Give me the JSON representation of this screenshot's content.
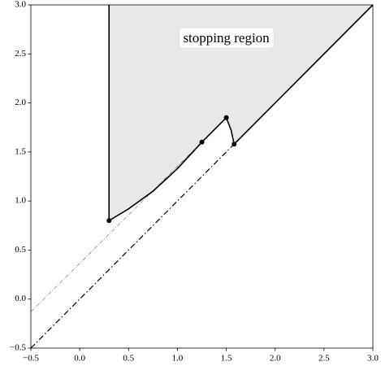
{
  "chart_data": {
    "type": "line",
    "xlim": [
      -0.5,
      3.0
    ],
    "ylim": [
      -0.5,
      3.0
    ],
    "xticks": [
      {
        "value": -0.5,
        "label": "−0.5"
      },
      {
        "value": 0,
        "label": "0.0"
      },
      0.5,
      {
        "value": 1,
        "label": "1.0"
      },
      1.5,
      {
        "value": 2,
        "label": "2.0"
      },
      2.5,
      {
        "value": 3,
        "label": "3.0"
      }
    ],
    "yticks": [
      {
        "value": -0.5,
        "label": "−0.5"
      },
      {
        "value": 0,
        "label": "0.0"
      },
      0.5,
      {
        "value": 1,
        "label": "1.0"
      },
      1.5,
      {
        "value": 2,
        "label": "2.0"
      },
      2.5,
      {
        "value": 3,
        "label": "3.0"
      }
    ],
    "series": [
      {
        "color": "#000000",
        "fill": "#e8e8e8",
        "linestyle": "solid",
        "linewidth": 1.6,
        "x": [
          0.3,
          0.3,
          0.5,
          0.75,
          1.0,
          1.25,
          1.5,
          1.55,
          1.58,
          3.0
        ],
        "values": [
          3.0,
          0.8,
          0.92,
          1.1,
          1.33,
          1.6,
          1.85,
          1.72,
          1.58,
          3.0
        ]
      },
      {
        "color": "#000000",
        "linestyle": "dashdot",
        "linewidth": 1.2,
        "x": [
          -0.5,
          1.58
        ],
        "values": [
          -0.5,
          1.58
        ]
      },
      {
        "color": "#000000",
        "linestyle": "dashdot",
        "linewidth": 0.5,
        "x": [
          -0.5,
          1.25
        ],
        "values": [
          -0.13,
          1.6
        ]
      },
      {
        "color": "#000000",
        "linestyle": "none",
        "marker": "o",
        "x": [
          0.3,
          1.25,
          1.5,
          1.58
        ],
        "values": [
          0.8,
          1.6,
          1.85,
          1.58
        ]
      }
    ],
    "annotation": {
      "text": "stopping region",
      "x": 1.5,
      "y": 2.65
    }
  }
}
